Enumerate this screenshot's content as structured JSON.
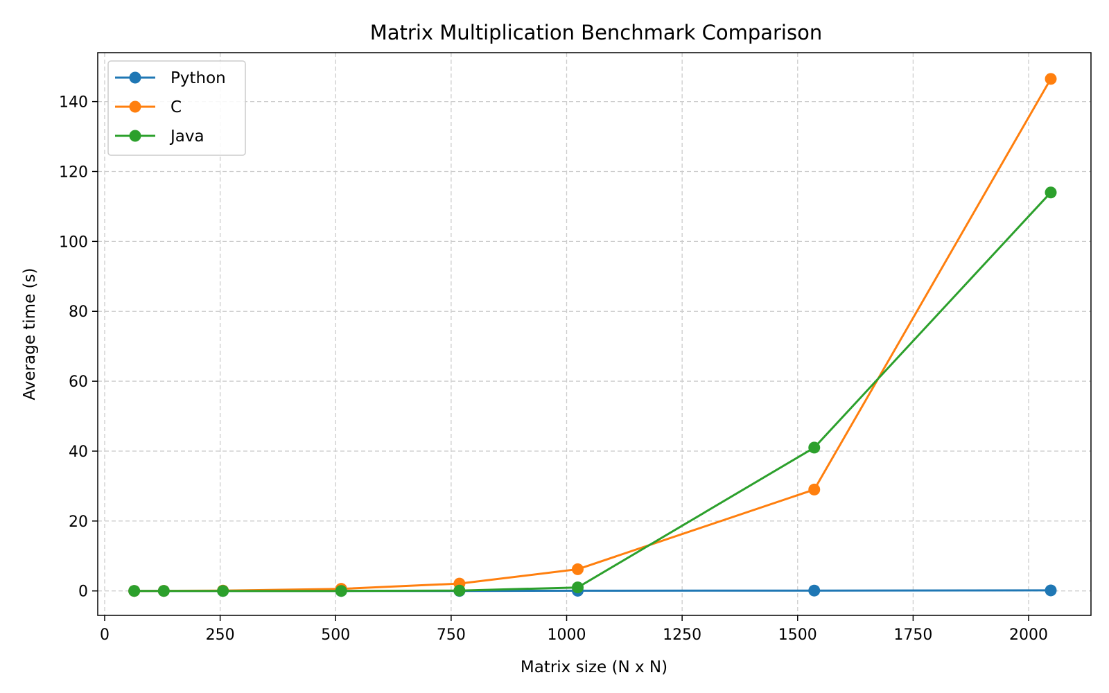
{
  "chart_data": {
    "type": "line",
    "title": "Matrix Multiplication Benchmark Comparison",
    "xlabel": "Matrix size (N x N)",
    "ylabel": "Average time (s)",
    "xlim": [
      -15,
      2135
    ],
    "ylim": [
      -7,
      154
    ],
    "xticks": [
      0,
      250,
      500,
      750,
      1000,
      1250,
      1500,
      1750,
      2000
    ],
    "yticks": [
      0,
      20,
      40,
      60,
      80,
      100,
      120,
      140
    ],
    "grid": true,
    "legend_position": "top-left",
    "x": [
      64,
      128,
      256,
      512,
      768,
      1024,
      1536,
      2048
    ],
    "series": [
      {
        "name": "Python",
        "color": "#1f77b4",
        "values": [
          0.0,
          0.0,
          0.0,
          0.0,
          0.0,
          0.05,
          0.1,
          0.15
        ]
      },
      {
        "name": "C",
        "color": "#ff7f0e",
        "values": [
          0.0,
          0.02,
          0.1,
          0.6,
          2.1,
          6.2,
          29.0,
          146.5
        ]
      },
      {
        "name": "Java",
        "color": "#2ca02c",
        "values": [
          0.0,
          0.0,
          0.0,
          0.0,
          0.1,
          1.0,
          41.0,
          114.0
        ]
      }
    ]
  }
}
